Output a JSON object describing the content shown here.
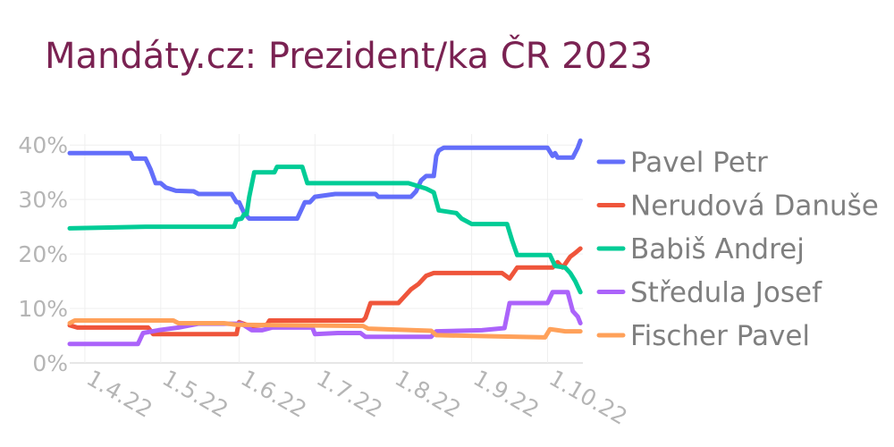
{
  "chart_data": {
    "type": "line",
    "title": "Mandáty.cz: Prezident/ka ČR 2023",
    "xlabel": "",
    "ylabel": "",
    "x_ticks": [
      "1.4.22",
      "1.5.22",
      "1.6.22",
      "1.7.22",
      "1.8.22",
      "1.9.22",
      "1.10.22"
    ],
    "y_ticks": [
      "0%",
      "10%",
      "20%",
      "30%",
      "40%"
    ],
    "ylim": [
      0,
      42
    ],
    "xlim": [
      "2022-03-26",
      "2022-10-15"
    ],
    "grid": true,
    "legend_position": "right",
    "series": [
      {
        "name": "Pavel Petr",
        "color": "#636efa",
        "points": [
          [
            "2022-03-26",
            38.5
          ],
          [
            "2022-04-19",
            38.5
          ],
          [
            "2022-04-20",
            37.5
          ],
          [
            "2022-04-25",
            37.5
          ],
          [
            "2022-04-27",
            35.5
          ],
          [
            "2022-04-29",
            33.0
          ],
          [
            "2022-05-01",
            33.0
          ],
          [
            "2022-05-03",
            32.2
          ],
          [
            "2022-05-07",
            31.6
          ],
          [
            "2022-05-14",
            31.5
          ],
          [
            "2022-05-16",
            31.0
          ],
          [
            "2022-05-29",
            31.0
          ],
          [
            "2022-05-31",
            29.5
          ],
          [
            "2022-06-01",
            29.5
          ],
          [
            "2022-06-03",
            27.5
          ],
          [
            "2022-06-05",
            26.5
          ],
          [
            "2022-06-24",
            26.5
          ],
          [
            "2022-06-27",
            29.5
          ],
          [
            "2022-06-29",
            29.5
          ],
          [
            "2022-07-01",
            30.5
          ],
          [
            "2022-07-09",
            31.0
          ],
          [
            "2022-07-25",
            31.0
          ],
          [
            "2022-07-26",
            30.5
          ],
          [
            "2022-08-08",
            30.5
          ],
          [
            "2022-08-10",
            31.5
          ],
          [
            "2022-08-12",
            33.5
          ],
          [
            "2022-08-14",
            34.3
          ],
          [
            "2022-08-17",
            34.3
          ],
          [
            "2022-08-18",
            38.0
          ],
          [
            "2022-08-19",
            39.0
          ],
          [
            "2022-08-21",
            39.5
          ],
          [
            "2022-10-01",
            39.5
          ],
          [
            "2022-10-03",
            38.0
          ],
          [
            "2022-10-04",
            38.5
          ],
          [
            "2022-10-05",
            37.7
          ],
          [
            "2022-10-11",
            37.7
          ],
          [
            "2022-10-13",
            39.5
          ],
          [
            "2022-10-14",
            40.8
          ]
        ]
      },
      {
        "name": "Nerudová Danuše",
        "color": "#ef553b",
        "points": [
          [
            "2022-03-26",
            6.9
          ],
          [
            "2022-03-29",
            6.5
          ],
          [
            "2022-04-26",
            6.5
          ],
          [
            "2022-04-28",
            5.3
          ],
          [
            "2022-05-31",
            5.3
          ],
          [
            "2022-06-01",
            7.5
          ],
          [
            "2022-06-04",
            7.0
          ],
          [
            "2022-06-06",
            6.8
          ],
          [
            "2022-06-12",
            7.0
          ],
          [
            "2022-06-13",
            7.8
          ],
          [
            "2022-07-20",
            7.8
          ],
          [
            "2022-07-21",
            8.3
          ],
          [
            "2022-07-23",
            11.0
          ],
          [
            "2022-08-03",
            11.0
          ],
          [
            "2022-08-05",
            12.0
          ],
          [
            "2022-08-08",
            13.5
          ],
          [
            "2022-08-11",
            14.5
          ],
          [
            "2022-08-14",
            16.0
          ],
          [
            "2022-08-17",
            16.5
          ],
          [
            "2022-09-13",
            16.5
          ],
          [
            "2022-09-16",
            15.5
          ],
          [
            "2022-09-19",
            17.5
          ],
          [
            "2022-10-03",
            17.5
          ],
          [
            "2022-10-05",
            18.5
          ],
          [
            "2022-10-07",
            17.5
          ],
          [
            "2022-10-10",
            19.5
          ],
          [
            "2022-10-12",
            20.2
          ],
          [
            "2022-10-14",
            21.0
          ]
        ]
      },
      {
        "name": "Babiš Andrej",
        "color": "#00cc96",
        "points": [
          [
            "2022-03-26",
            24.7
          ],
          [
            "2022-04-25",
            25.0
          ],
          [
            "2022-05-30",
            25.0
          ],
          [
            "2022-05-31",
            26.3
          ],
          [
            "2022-06-02",
            26.5
          ],
          [
            "2022-06-03",
            27.3
          ],
          [
            "2022-06-04",
            27.3
          ],
          [
            "2022-06-05",
            30.5
          ],
          [
            "2022-06-07",
            35.0
          ],
          [
            "2022-06-15",
            35.0
          ],
          [
            "2022-06-16",
            36.0
          ],
          [
            "2022-06-26",
            36.0
          ],
          [
            "2022-06-28",
            33.0
          ],
          [
            "2022-08-07",
            33.0
          ],
          [
            "2022-08-14",
            32.0
          ],
          [
            "2022-08-17",
            31.3
          ],
          [
            "2022-08-19",
            28.0
          ],
          [
            "2022-08-26",
            27.5
          ],
          [
            "2022-08-28",
            26.5
          ],
          [
            "2022-09-01",
            25.5
          ],
          [
            "2022-09-15",
            25.5
          ],
          [
            "2022-09-17",
            22.5
          ],
          [
            "2022-09-19",
            19.8
          ],
          [
            "2022-10-02",
            19.8
          ],
          [
            "2022-10-04",
            17.8
          ],
          [
            "2022-10-08",
            17.5
          ],
          [
            "2022-10-10",
            16.5
          ],
          [
            "2022-10-12",
            15.0
          ],
          [
            "2022-10-14",
            13.0
          ]
        ]
      },
      {
        "name": "Středula Josef",
        "color": "#ab63fa",
        "points": [
          [
            "2022-03-26",
            3.5
          ],
          [
            "2022-04-22",
            3.5
          ],
          [
            "2022-04-24",
            5.5
          ],
          [
            "2022-04-30",
            6.0
          ],
          [
            "2022-05-08",
            6.5
          ],
          [
            "2022-05-16",
            7.2
          ],
          [
            "2022-06-02",
            7.2
          ],
          [
            "2022-06-06",
            6.0
          ],
          [
            "2022-06-10",
            6.0
          ],
          [
            "2022-06-14",
            6.5
          ],
          [
            "2022-06-30",
            6.5
          ],
          [
            "2022-07-01",
            5.3
          ],
          [
            "2022-07-10",
            5.5
          ],
          [
            "2022-07-19",
            5.5
          ],
          [
            "2022-07-21",
            4.8
          ],
          [
            "2022-08-16",
            4.8
          ],
          [
            "2022-08-18",
            5.8
          ],
          [
            "2022-09-05",
            6.0
          ],
          [
            "2022-09-14",
            6.4
          ],
          [
            "2022-09-16",
            11.0
          ],
          [
            "2022-10-01",
            11.0
          ],
          [
            "2022-10-03",
            13.0
          ],
          [
            "2022-10-09",
            13.0
          ],
          [
            "2022-10-11",
            9.5
          ],
          [
            "2022-10-13",
            8.5
          ],
          [
            "2022-10-14",
            7.3
          ]
        ]
      },
      {
        "name": "Fischer Pavel",
        "color": "#ffa15a",
        "points": [
          [
            "2022-03-26",
            7.3
          ],
          [
            "2022-03-28",
            7.8
          ],
          [
            "2022-05-06",
            7.8
          ],
          [
            "2022-05-08",
            7.3
          ],
          [
            "2022-05-26",
            7.3
          ],
          [
            "2022-05-31",
            7.0
          ],
          [
            "2022-07-20",
            6.8
          ],
          [
            "2022-07-22",
            6.3
          ],
          [
            "2022-08-16",
            5.9
          ],
          [
            "2022-08-18",
            5.1
          ],
          [
            "2022-09-30",
            4.7
          ],
          [
            "2022-10-02",
            6.2
          ],
          [
            "2022-10-05",
            6.0
          ],
          [
            "2022-10-08",
            5.8
          ],
          [
            "2022-10-14",
            5.8
          ]
        ]
      }
    ]
  }
}
